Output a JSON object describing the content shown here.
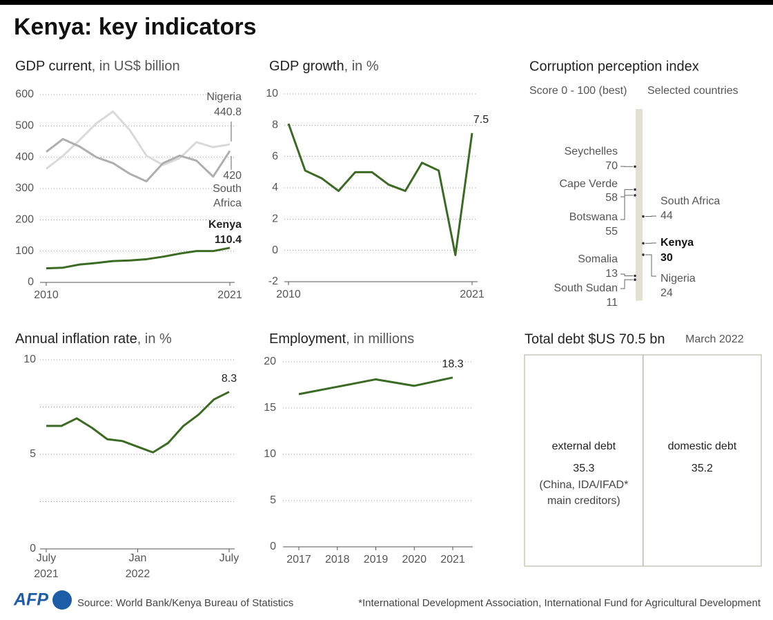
{
  "title": "Kenya: key indicators",
  "logo": "AFP",
  "source": "Source: World Bank/Kenya Bureau of Statistics",
  "footnote": "*International Development Association, International Fund for Agricultural Development",
  "chart_data": [
    {
      "type": "line",
      "title": "GDP current",
      "title_unit": ", in US$ billion",
      "x": [
        2010,
        2011,
        2012,
        2013,
        2014,
        2015,
        2016,
        2017,
        2018,
        2019,
        2020,
        2021
      ],
      "xlim": [
        2010,
        2021
      ],
      "xticks": [
        2010,
        2021
      ],
      "ylim": [
        0,
        600
      ],
      "yticks": [
        0,
        100,
        200,
        300,
        400,
        500,
        600
      ],
      "grid": true,
      "series": [
        {
          "name": "Nigeria",
          "color": "#d9d9d9",
          "values": [
            363,
            404,
            455,
            508,
            546,
            487,
            405,
            375,
            397,
            448,
            432,
            440.8
          ]
        },
        {
          "name": "South Africa",
          "color": "#aeaeae",
          "values": [
            417,
            458,
            434,
            400,
            381,
            347,
            323,
            381,
            405,
            389,
            338,
            420
          ]
        },
        {
          "name": "Kenya",
          "color": "#3b6a22",
          "values": [
            45,
            47,
            57,
            62,
            68,
            70,
            74,
            82,
            92,
            100,
            100,
            110.4
          ]
        }
      ]
    },
    {
      "type": "line",
      "title": "GDP growth",
      "title_unit": ", in %",
      "x": [
        2010,
        2011,
        2012,
        2013,
        2014,
        2015,
        2016,
        2017,
        2018,
        2019,
        2020,
        2021
      ],
      "xlim": [
        2010,
        2021
      ],
      "xticks": [
        2010,
        2021
      ],
      "ylim": [
        -2,
        10
      ],
      "yticks": [
        -2,
        0,
        2,
        4,
        6,
        8,
        10
      ],
      "grid": true,
      "color": "#3b6a22",
      "values": [
        8.1,
        5.1,
        4.6,
        3.8,
        5.0,
        5.0,
        4.2,
        3.8,
        5.6,
        5.1,
        -0.3,
        7.5
      ]
    },
    {
      "type": "dot",
      "title": "Corruption perception index",
      "subtitle": "Score 0 - 100 (best)",
      "note": "Selected countries",
      "categories": [
        "Seychelles",
        "Cape Verde",
        "Botswana",
        "South Africa",
        "Kenya",
        "Nigeria",
        "Somalia",
        "South Sudan"
      ],
      "values": [
        70,
        58,
        55,
        44,
        30,
        24,
        13,
        11
      ],
      "side": [
        "left",
        "left",
        "left",
        "right",
        "right",
        "right",
        "left",
        "left"
      ],
      "highlight": "Kenya",
      "ylim": [
        0,
        100
      ],
      "color": "#333333",
      "scale_color": "#e2e0d3"
    },
    {
      "type": "line",
      "title": "Annual inflation rate",
      "title_unit": ", in %",
      "categories": [
        "July 2021",
        null,
        null,
        null,
        null,
        null,
        "Jan 2022",
        null,
        null,
        null,
        null,
        null,
        "July"
      ],
      "ylim": [
        0,
        10
      ],
      "yticks": [
        0,
        5,
        10
      ],
      "minor_grid": [
        2.5,
        7.5
      ],
      "grid": true,
      "color": "#3b6a22",
      "values": [
        6.5,
        6.5,
        6.9,
        6.4,
        5.8,
        5.7,
        5.4,
        5.1,
        5.6,
        6.5,
        7.1,
        7.9,
        8.3
      ]
    },
    {
      "type": "line",
      "title": "Employment",
      "title_unit": ", in millions",
      "x": [
        2017,
        2018,
        2019,
        2020,
        2021
      ],
      "xlim": [
        2017,
        2021
      ],
      "xticks": [
        2017,
        2018,
        2019,
        2020,
        2021
      ],
      "ylim": [
        0,
        20
      ],
      "yticks": [
        0,
        5,
        10,
        15,
        20
      ],
      "grid": true,
      "color": "#3b6a22",
      "values": [
        16.5,
        17.3,
        18.1,
        17.4,
        18.3
      ]
    },
    {
      "type": "treemap",
      "title": "Total debt $US 70.5 bn",
      "date": "March 2022",
      "categories": [
        "external debt",
        "domestic debt"
      ],
      "values": [
        35.3,
        35.2
      ],
      "external_note": [
        "(China, IDA/IFAD*",
        "main creditors)"
      ],
      "color": "#aeae98"
    }
  ]
}
